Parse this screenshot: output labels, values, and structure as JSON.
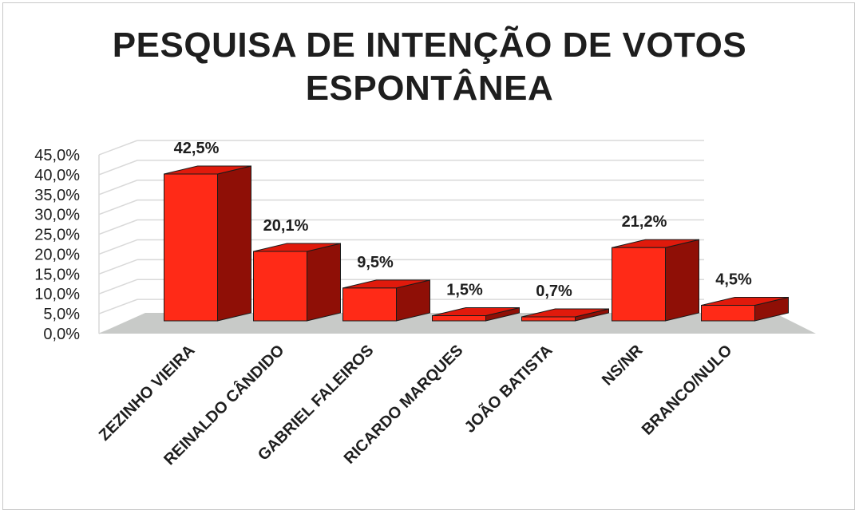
{
  "title_lines": [
    "PESQUISA DE INTENÇÃO DE VOTOS",
    "ESPONTÂNEA"
  ],
  "chart_data": {
    "type": "bar",
    "title": "PESQUISA DE INTENÇÃO DE VOTOS ESPONTÂNEA",
    "categories": [
      "ZEZINHO VIEIRA",
      "REINALDO CÂNDIDO",
      "GABRIEL FALEIROS",
      "RICARDO MARQUES",
      "JOÃO BATISTA",
      "NS/NR",
      "BRANCO/NULO"
    ],
    "values": [
      42.5,
      20.1,
      9.5,
      1.5,
      0.7,
      21.2,
      4.5
    ],
    "data_labels": [
      "42,5%",
      "20,1%",
      "9,5%",
      "1,5%",
      "0,7%",
      "21,2%",
      "4,5%"
    ],
    "ylim": [
      0,
      45
    ],
    "yticks": [
      "0,0%",
      "5,0%",
      "10,0%",
      "15,0%",
      "20,0%",
      "25,0%",
      "30,0%",
      "35,0%",
      "40,0%",
      "45,0%"
    ],
    "grid": true,
    "style": "3d",
    "colors": {
      "front": "#ff2a17",
      "side": "#8f0f06",
      "top": "#e01a0c",
      "floor": "#c8cac8",
      "outline": "#1a1a1a"
    }
  }
}
